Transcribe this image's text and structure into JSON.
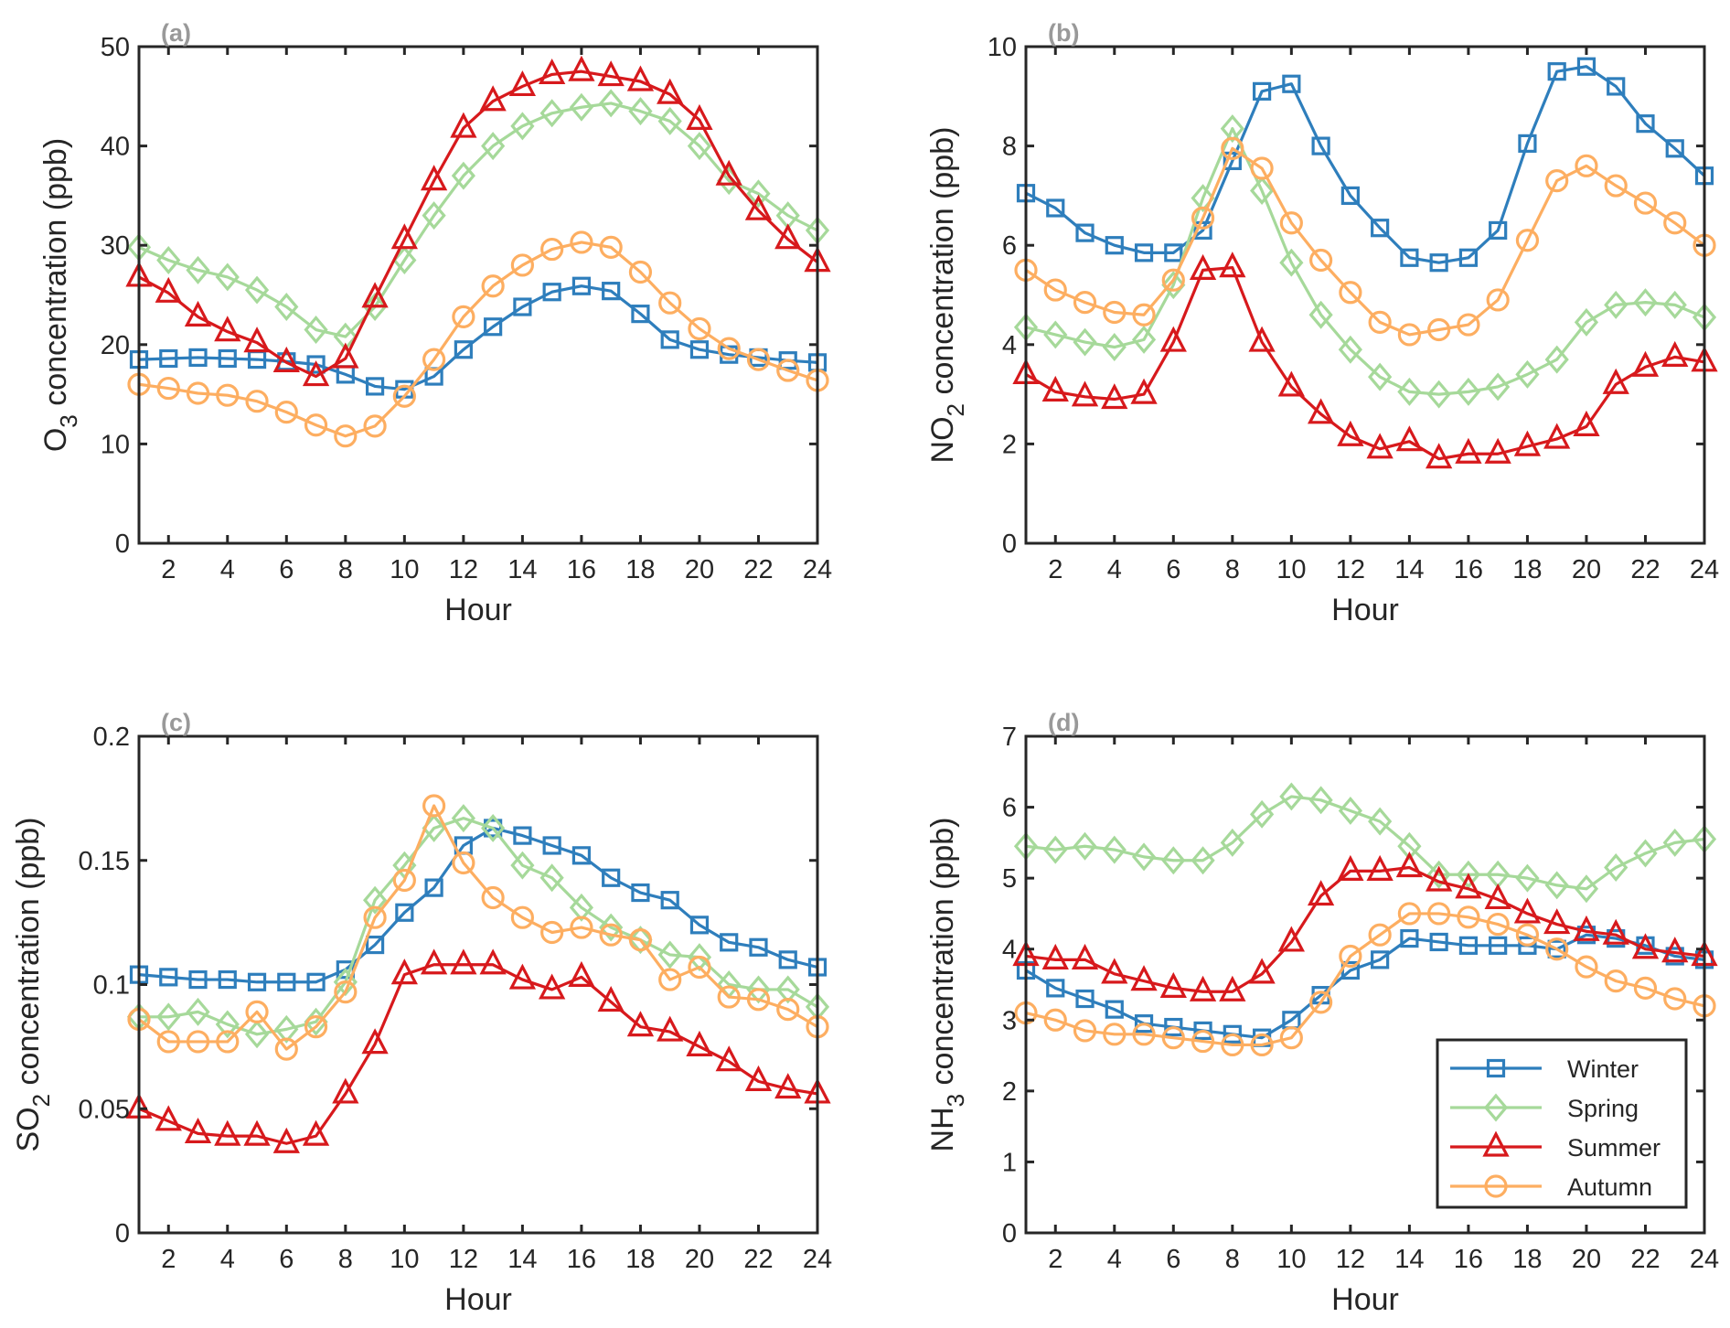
{
  "series_style": {
    "Winter": {
      "color": "#2e7ebc",
      "marker": "square"
    },
    "Spring": {
      "color": "#a6d99a",
      "marker": "diamond"
    },
    "Summer": {
      "color": "#d7191c",
      "marker": "triangle"
    },
    "Autumn": {
      "color": "#fdae61",
      "marker": "circle"
    }
  },
  "legend": {
    "entries": [
      "Winter",
      "Spring",
      "Summer",
      "Autumn"
    ],
    "placement": "bottom-right of panel (d)"
  },
  "chart_data": [
    {
      "type": "line",
      "panel_label": "(a)",
      "xlabel": "Hour",
      "ylabel": {
        "base": "O",
        "sub": "3",
        "rest": " concentration (ppb)"
      },
      "xlim": [
        1,
        24
      ],
      "ylim": [
        0,
        50
      ],
      "xticks": [
        2,
        4,
        6,
        8,
        10,
        12,
        14,
        16,
        18,
        20,
        22,
        24
      ],
      "yticks": [
        0,
        10,
        20,
        30,
        40,
        50
      ],
      "x": [
        1,
        2,
        3,
        4,
        5,
        6,
        7,
        8,
        9,
        10,
        11,
        12,
        13,
        14,
        15,
        16,
        17,
        18,
        19,
        20,
        21,
        22,
        23,
        24
      ],
      "series": [
        {
          "name": "Winter",
          "values": [
            18.5,
            18.6,
            18.7,
            18.6,
            18.5,
            18.3,
            18.0,
            17.0,
            15.8,
            15.5,
            16.8,
            19.5,
            21.8,
            23.8,
            25.3,
            25.9,
            25.4,
            23.1,
            20.5,
            19.5,
            19.0,
            18.7,
            18.4,
            18.2
          ]
        },
        {
          "name": "Spring",
          "values": [
            29.8,
            28.5,
            27.5,
            26.8,
            25.5,
            23.8,
            21.5,
            20.8,
            23.8,
            28.5,
            33.0,
            37.0,
            40.0,
            42.0,
            43.3,
            43.9,
            44.3,
            43.5,
            42.5,
            40.0,
            36.5,
            35.2,
            33.0,
            31.5
          ]
        },
        {
          "name": "Summer",
          "values": [
            26.8,
            25.2,
            22.8,
            21.3,
            20.2,
            18.2,
            16.8,
            18.6,
            24.7,
            30.6,
            36.5,
            41.8,
            44.5,
            46.0,
            47.2,
            47.5,
            47.0,
            46.5,
            45.2,
            42.6,
            37.0,
            33.5,
            30.6,
            28.3
          ]
        },
        {
          "name": "Autumn",
          "values": [
            16.0,
            15.6,
            15.1,
            14.9,
            14.3,
            13.2,
            11.9,
            10.8,
            11.8,
            14.8,
            18.5,
            22.8,
            25.9,
            28.0,
            29.6,
            30.3,
            29.8,
            27.3,
            24.2,
            21.6,
            19.6,
            18.5,
            17.4,
            16.4
          ]
        }
      ]
    },
    {
      "type": "line",
      "panel_label": "(b)",
      "xlabel": "Hour",
      "ylabel": {
        "base": "NO",
        "sub": "2",
        "rest": " concentration (ppb)"
      },
      "xlim": [
        1,
        24
      ],
      "ylim": [
        0,
        10
      ],
      "xticks": [
        2,
        4,
        6,
        8,
        10,
        12,
        14,
        16,
        18,
        20,
        22,
        24
      ],
      "yticks": [
        0,
        2,
        4,
        6,
        8,
        10
      ],
      "x": [
        1,
        2,
        3,
        4,
        5,
        6,
        7,
        8,
        9,
        10,
        11,
        12,
        13,
        14,
        15,
        16,
        17,
        18,
        19,
        20,
        21,
        22,
        23,
        24
      ],
      "series": [
        {
          "name": "Winter",
          "values": [
            7.05,
            6.75,
            6.25,
            6.0,
            5.85,
            5.85,
            6.3,
            7.7,
            9.1,
            9.25,
            8.0,
            7.0,
            6.35,
            5.75,
            5.65,
            5.75,
            6.3,
            8.05,
            9.5,
            9.6,
            9.2,
            8.45,
            7.95,
            7.4
          ]
        },
        {
          "name": "Spring",
          "values": [
            4.35,
            4.2,
            4.05,
            3.95,
            4.1,
            5.2,
            6.95,
            8.35,
            7.1,
            5.65,
            4.6,
            3.9,
            3.35,
            3.05,
            3.0,
            3.05,
            3.15,
            3.4,
            3.7,
            4.45,
            4.8,
            4.85,
            4.8,
            4.55
          ]
        },
        {
          "name": "Summer",
          "values": [
            3.4,
            3.05,
            2.95,
            2.9,
            3.0,
            4.05,
            5.5,
            5.55,
            4.05,
            3.15,
            2.6,
            2.15,
            1.9,
            2.05,
            1.7,
            1.8,
            1.8,
            1.95,
            2.1,
            2.35,
            3.2,
            3.55,
            3.75,
            3.65
          ]
        },
        {
          "name": "Autumn",
          "values": [
            5.5,
            5.1,
            4.85,
            4.65,
            4.6,
            5.3,
            6.55,
            7.95,
            7.55,
            6.45,
            5.7,
            5.05,
            4.45,
            4.2,
            4.3,
            4.4,
            4.9,
            6.1,
            7.3,
            7.6,
            7.2,
            6.85,
            6.45,
            6.0
          ]
        }
      ]
    },
    {
      "type": "line",
      "panel_label": "(c)",
      "xlabel": "Hour",
      "ylabel": {
        "base": "SO",
        "sub": "2",
        "rest": " concentration (ppb)"
      },
      "xlim": [
        1,
        24
      ],
      "ylim": [
        0,
        0.2
      ],
      "xticks": [
        2,
        4,
        6,
        8,
        10,
        12,
        14,
        16,
        18,
        20,
        22,
        24
      ],
      "yticks": [
        0,
        0.05,
        0.1,
        0.15,
        0.2
      ],
      "x": [
        1,
        2,
        3,
        4,
        5,
        6,
        7,
        8,
        9,
        10,
        11,
        12,
        13,
        14,
        15,
        16,
        17,
        18,
        19,
        20,
        21,
        22,
        23,
        24
      ],
      "series": [
        {
          "name": "Winter",
          "values": [
            0.104,
            0.103,
            0.102,
            0.102,
            0.101,
            0.101,
            0.101,
            0.106,
            0.116,
            0.129,
            0.139,
            0.156,
            0.163,
            0.16,
            0.156,
            0.152,
            0.143,
            0.137,
            0.134,
            0.124,
            0.117,
            0.115,
            0.11,
            0.107
          ]
        },
        {
          "name": "Spring",
          "values": [
            0.087,
            0.087,
            0.089,
            0.084,
            0.08,
            0.082,
            0.085,
            0.101,
            0.134,
            0.148,
            0.163,
            0.167,
            0.163,
            0.148,
            0.143,
            0.131,
            0.123,
            0.118,
            0.112,
            0.111,
            0.1,
            0.098,
            0.098,
            0.091
          ]
        },
        {
          "name": "Summer",
          "values": [
            0.05,
            0.045,
            0.04,
            0.039,
            0.039,
            0.036,
            0.039,
            0.056,
            0.076,
            0.104,
            0.108,
            0.108,
            0.108,
            0.102,
            0.098,
            0.103,
            0.093,
            0.083,
            0.081,
            0.075,
            0.069,
            0.061,
            0.058,
            0.056
          ]
        },
        {
          "name": "Autumn",
          "values": [
            0.086,
            0.077,
            0.077,
            0.077,
            0.089,
            0.074,
            0.083,
            0.097,
            0.127,
            0.142,
            0.172,
            0.149,
            0.135,
            0.127,
            0.121,
            0.123,
            0.12,
            0.118,
            0.102,
            0.107,
            0.095,
            0.094,
            0.09,
            0.083
          ]
        }
      ]
    },
    {
      "type": "line",
      "panel_label": "(d)",
      "xlabel": "Hour",
      "ylabel": {
        "base": "NH",
        "sub": "3",
        "rest": " concentration (ppb)"
      },
      "xlim": [
        1,
        24
      ],
      "ylim": [
        0,
        7
      ],
      "xticks": [
        2,
        4,
        6,
        8,
        10,
        12,
        14,
        16,
        18,
        20,
        22,
        24
      ],
      "yticks": [
        0,
        1,
        2,
        3,
        4,
        5,
        6,
        7
      ],
      "x": [
        1,
        2,
        3,
        4,
        5,
        6,
        7,
        8,
        9,
        10,
        11,
        12,
        13,
        14,
        15,
        16,
        17,
        18,
        19,
        20,
        21,
        22,
        23,
        24
      ],
      "series": [
        {
          "name": "Winter",
          "values": [
            3.7,
            3.45,
            3.3,
            3.15,
            2.95,
            2.9,
            2.85,
            2.8,
            2.75,
            3.0,
            3.35,
            3.7,
            3.85,
            4.15,
            4.1,
            4.05,
            4.05,
            4.05,
            4.0,
            4.2,
            4.15,
            4.05,
            3.9,
            3.85
          ]
        },
        {
          "name": "Spring",
          "values": [
            5.45,
            5.4,
            5.45,
            5.4,
            5.3,
            5.25,
            5.25,
            5.5,
            5.9,
            6.15,
            6.1,
            5.95,
            5.8,
            5.45,
            5.05,
            5.05,
            5.05,
            5.0,
            4.9,
            4.85,
            5.15,
            5.35,
            5.5,
            5.55
          ]
        },
        {
          "name": "Summer",
          "values": [
            3.9,
            3.85,
            3.85,
            3.65,
            3.55,
            3.45,
            3.4,
            3.4,
            3.65,
            4.1,
            4.75,
            5.1,
            5.1,
            5.15,
            4.95,
            4.85,
            4.7,
            4.5,
            4.35,
            4.25,
            4.2,
            4.0,
            3.95,
            3.9
          ]
        },
        {
          "name": "Autumn",
          "values": [
            3.1,
            3.0,
            2.85,
            2.8,
            2.8,
            2.75,
            2.7,
            2.65,
            2.65,
            2.75,
            3.25,
            3.9,
            4.2,
            4.5,
            4.5,
            4.45,
            4.35,
            4.2,
            4.0,
            3.75,
            3.55,
            3.45,
            3.3,
            3.2
          ]
        }
      ]
    }
  ]
}
